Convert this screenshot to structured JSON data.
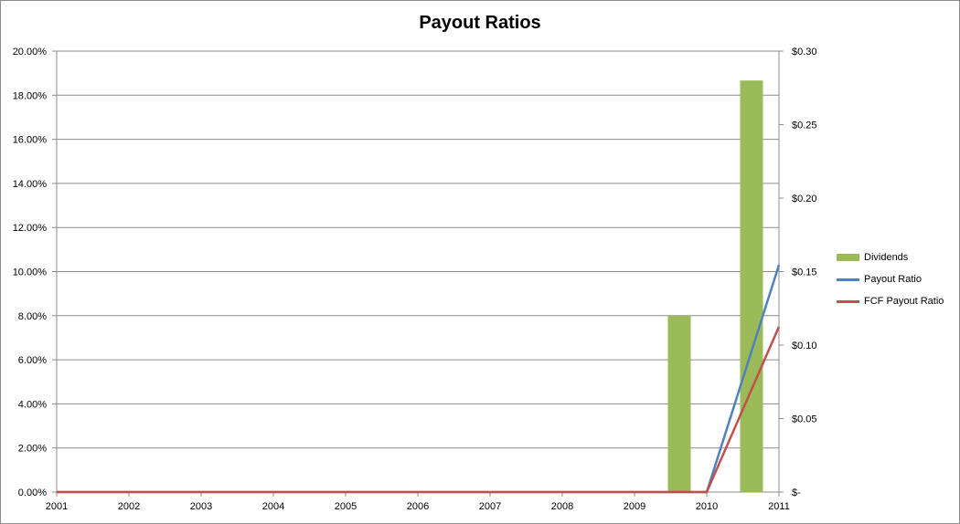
{
  "chart_data": {
    "type": "bar",
    "title": "Payout Ratios",
    "categories": [
      "2001",
      "2002",
      "2003",
      "2004",
      "2005",
      "2006",
      "2007",
      "2008",
      "2009",
      "2010",
      "2011"
    ],
    "y_left": {
      "ticks": [
        "0.00%",
        "2.00%",
        "4.00%",
        "6.00%",
        "8.00%",
        "10.00%",
        "12.00%",
        "14.00%",
        "16.00%",
        "18.00%",
        "20.00%"
      ],
      "ylim": [
        0,
        20
      ],
      "unit": "percent"
    },
    "y_right": {
      "ticks": [
        "$-",
        "$0.05",
        "$0.10",
        "$0.15",
        "$0.20",
        "$0.25",
        "$0.30"
      ],
      "ylim": [
        0,
        0.3
      ],
      "unit": "dollars"
    },
    "grid": true,
    "legend_position": "right",
    "series": [
      {
        "name": "Dividends",
        "type": "bar",
        "axis": "right",
        "color": "#9bbb59",
        "values": [
          0,
          0,
          0,
          0,
          0,
          0,
          0,
          0,
          0,
          0.12,
          0.28
        ]
      },
      {
        "name": "Payout Ratio",
        "type": "line",
        "axis": "left",
        "color": "#4f81bd",
        "values": [
          0,
          0,
          0,
          0,
          0,
          0,
          0,
          0,
          0,
          0,
          10.3
        ]
      },
      {
        "name": "FCF Payout Ratio",
        "type": "line",
        "axis": "left",
        "color": "#c0504d",
        "values": [
          0,
          0,
          0,
          0,
          0,
          0,
          0,
          0,
          0,
          0,
          7.5
        ]
      }
    ]
  }
}
